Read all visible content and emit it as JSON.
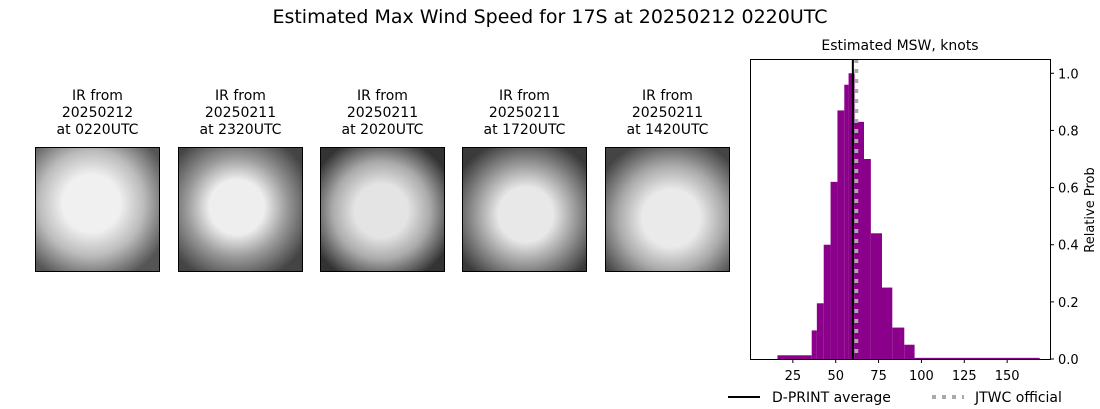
{
  "title": "Estimated Max Wind Speed for 17S at 20250212 0220UTC",
  "panels": [
    {
      "l1": "IR from",
      "l2": "20250212",
      "l3": "at 0220UTC"
    },
    {
      "l1": "IR from",
      "l2": "20250211",
      "l3": "at 2320UTC"
    },
    {
      "l1": "IR from",
      "l2": "20250211",
      "l3": "at 2020UTC"
    },
    {
      "l1": "IR from",
      "l2": "20250211",
      "l3": "at 1720UTC"
    },
    {
      "l1": "IR from",
      "l2": "20250211",
      "l3": "at 1420UTC"
    }
  ],
  "chart_data": {
    "type": "bar",
    "title": "Estimated MSW, knots",
    "ylabel": "Relative Prob",
    "xlim": [
      0,
      175
    ],
    "ylim": [
      0,
      1.05
    ],
    "xticks": [
      25,
      50,
      75,
      100,
      125,
      150
    ],
    "yticks": [
      "0.0",
      "0.2",
      "0.4",
      "0.6",
      "0.8",
      "1.0"
    ],
    "bar_color": "#8b008b",
    "bins": [
      {
        "from": 16,
        "to": 36,
        "value": 0.013
      },
      {
        "from": 36,
        "to": 39,
        "value": 0.1
      },
      {
        "from": 39,
        "to": 43,
        "value": 0.195
      },
      {
        "from": 43,
        "to": 47,
        "value": 0.4
      },
      {
        "from": 47,
        "to": 51,
        "value": 0.62
      },
      {
        "from": 51,
        "to": 55,
        "value": 0.87
      },
      {
        "from": 55,
        "to": 57.5,
        "value": 0.96
      },
      {
        "from": 57.5,
        "to": 61,
        "value": 1.0
      },
      {
        "from": 61,
        "to": 66.5,
        "value": 0.83
      },
      {
        "from": 66.5,
        "to": 70.5,
        "value": 0.7
      },
      {
        "from": 70.5,
        "to": 77,
        "value": 0.44
      },
      {
        "from": 77,
        "to": 83,
        "value": 0.25
      },
      {
        "from": 83,
        "to": 90,
        "value": 0.11
      },
      {
        "from": 90,
        "to": 96,
        "value": 0.05
      },
      {
        "from": 96,
        "to": 169,
        "value": 0.004
      }
    ],
    "dprint_average": 60,
    "jtwc_official": 62,
    "legend": [
      "D-PRINT average",
      "JTWC official"
    ],
    "legend_placement": "bottom"
  }
}
